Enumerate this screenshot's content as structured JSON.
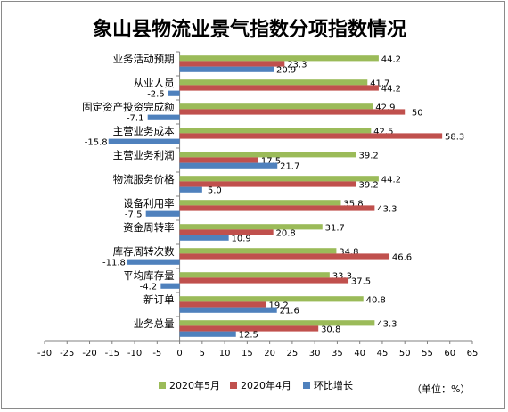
{
  "chart_data": {
    "type": "bar",
    "orientation": "horizontal",
    "title": "象山县物流业景气指数分项指数情况",
    "categories": [
      "业务活动预期",
      "从业人员",
      "固定资产投资完成额",
      "主营业务成本",
      "主营业务利润",
      "物流服务价格",
      "设备利用率",
      "资金周转率",
      "库存周转次数",
      "平均库存量",
      "新订单",
      "业务总量"
    ],
    "series": [
      {
        "name": "2020年5月",
        "color": "#9bbb59",
        "values": [
          44.2,
          41.7,
          42.9,
          42.5,
          39.2,
          44.2,
          35.8,
          31.7,
          34.8,
          33.3,
          40.8,
          43.3
        ]
      },
      {
        "name": "2020年4月",
        "color": "#c0504d",
        "values": [
          23.3,
          44.2,
          50,
          58.3,
          17.5,
          39.2,
          43.3,
          20.8,
          46.6,
          37.5,
          19.2,
          30.8
        ]
      },
      {
        "name": "环比增长",
        "color": "#4f81bd",
        "values": [
          20.9,
          -2.5,
          -7.1,
          -15.8,
          21.7,
          5.0,
          -7.5,
          10.9,
          -11.8,
          -4.2,
          21.6,
          12.5
        ]
      }
    ],
    "value_labels": [
      [
        "44.2",
        "23.3",
        "20.9"
      ],
      [
        "41.7",
        "44.2",
        "-2.5"
      ],
      [
        "42.9",
        "50",
        "-7.1"
      ],
      [
        "42.5",
        "58.3",
        "-15.8"
      ],
      [
        "39.2",
        "17.5",
        "21.7"
      ],
      [
        "44.2",
        "39.2",
        "5.0"
      ],
      [
        "35.8",
        "43.3",
        "-7.5"
      ],
      [
        "31.7",
        "20.8",
        "10.9"
      ],
      [
        "34.8",
        "46.6",
        "-11.8"
      ],
      [
        "33.3",
        "37.5",
        "-4.2"
      ],
      [
        "40.8",
        "19.2",
        "21.6"
      ],
      [
        "43.3",
        "30.8",
        "12.5"
      ]
    ],
    "xlim": [
      -30,
      65
    ],
    "xticks": [
      "-30",
      "-25",
      "-20",
      "-15",
      "-10",
      "-5",
      "0",
      "5",
      "10",
      "15",
      "20",
      "25",
      "30",
      "35",
      "40",
      "45",
      "50",
      "55",
      "60",
      "65"
    ],
    "grid": false,
    "legend_position": "bottom",
    "unit_note": "（单位：%）"
  }
}
